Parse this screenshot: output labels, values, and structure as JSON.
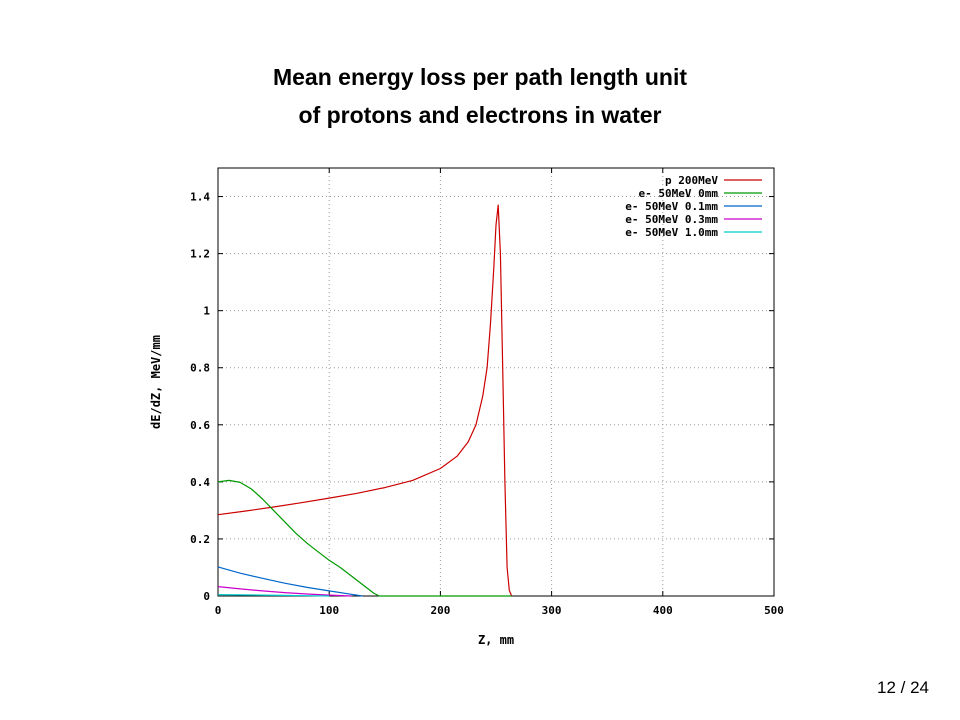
{
  "slide": {
    "title_line1": "Mean energy loss per path length unit",
    "title_line2": "of protons and electrons in water",
    "page_number": "12 / 24"
  },
  "chart_data": {
    "type": "line",
    "xlabel": "Z, mm",
    "ylabel": "dE/dZ, MeV/mm",
    "xlim": [
      0,
      500
    ],
    "ylim": [
      0,
      1.5
    ],
    "x_ticks": [
      0,
      100,
      200,
      300,
      400,
      500
    ],
    "x_tick_labels": [
      "0",
      "100",
      "200",
      "300",
      "400",
      "500"
    ],
    "y_ticks": [
      0,
      0.2,
      0.4,
      0.6,
      0.8,
      1,
      1.2,
      1.4
    ],
    "y_tick_labels": [
      "0",
      "0.2",
      "0.4",
      "0.6",
      "0.8",
      "1",
      "1.2",
      "1.4"
    ],
    "grid": true,
    "legend_position": "top-right",
    "series": [
      {
        "name": "p 200MeV",
        "color": "#cc0000",
        "x": [
          0,
          25,
          50,
          75,
          100,
          125,
          150,
          175,
          200,
          215,
          225,
          232,
          238,
          242,
          245,
          248,
          250,
          252,
          254,
          256,
          258,
          260,
          262,
          264
        ],
        "y": [
          0.285,
          0.298,
          0.312,
          0.327,
          0.343,
          0.36,
          0.38,
          0.405,
          0.447,
          0.49,
          0.54,
          0.6,
          0.7,
          0.8,
          0.95,
          1.15,
          1.3,
          1.37,
          1.2,
          0.8,
          0.4,
          0.1,
          0.02,
          0.0
        ]
      },
      {
        "name": "e- 50MeV 0mm",
        "color": "#009900",
        "x": [
          0,
          10,
          20,
          30,
          40,
          50,
          60,
          70,
          80,
          90,
          100,
          110,
          120,
          130,
          140,
          145,
          200,
          264
        ],
        "y": [
          0.4,
          0.405,
          0.398,
          0.375,
          0.34,
          0.3,
          0.26,
          0.22,
          0.185,
          0.155,
          0.125,
          0.1,
          0.07,
          0.04,
          0.01,
          0.0,
          0.0,
          0.0
        ]
      },
      {
        "name": "e- 50MeV 0.1mm",
        "color": "#0066cc",
        "x": [
          0,
          20,
          40,
          60,
          80,
          100,
          120,
          130
        ],
        "y": [
          0.102,
          0.08,
          0.062,
          0.045,
          0.03,
          0.018,
          0.006,
          0.0
        ]
      },
      {
        "name": "e- 50MeV 0.3mm",
        "color": "#cc00cc",
        "x": [
          0,
          20,
          40,
          60,
          80,
          100,
          120
        ],
        "y": [
          0.033,
          0.025,
          0.018,
          0.012,
          0.007,
          0.003,
          0.0
        ]
      },
      {
        "name": "e- 50MeV 1.0mm",
        "color": "#00cccc",
        "x": [
          0,
          20,
          40,
          60,
          80,
          100
        ],
        "y": [
          0.005,
          0.004,
          0.003,
          0.002,
          0.001,
          0.0
        ]
      }
    ]
  }
}
